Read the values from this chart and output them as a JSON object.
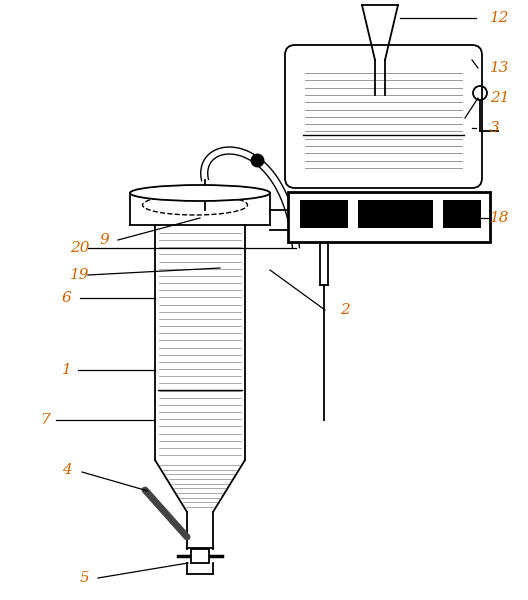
{
  "label_color": "#cc6600",
  "line_color": "#000000",
  "background": "#ffffff",
  "fig_w": 5.28,
  "fig_h": 6.0,
  "dpi": 100
}
